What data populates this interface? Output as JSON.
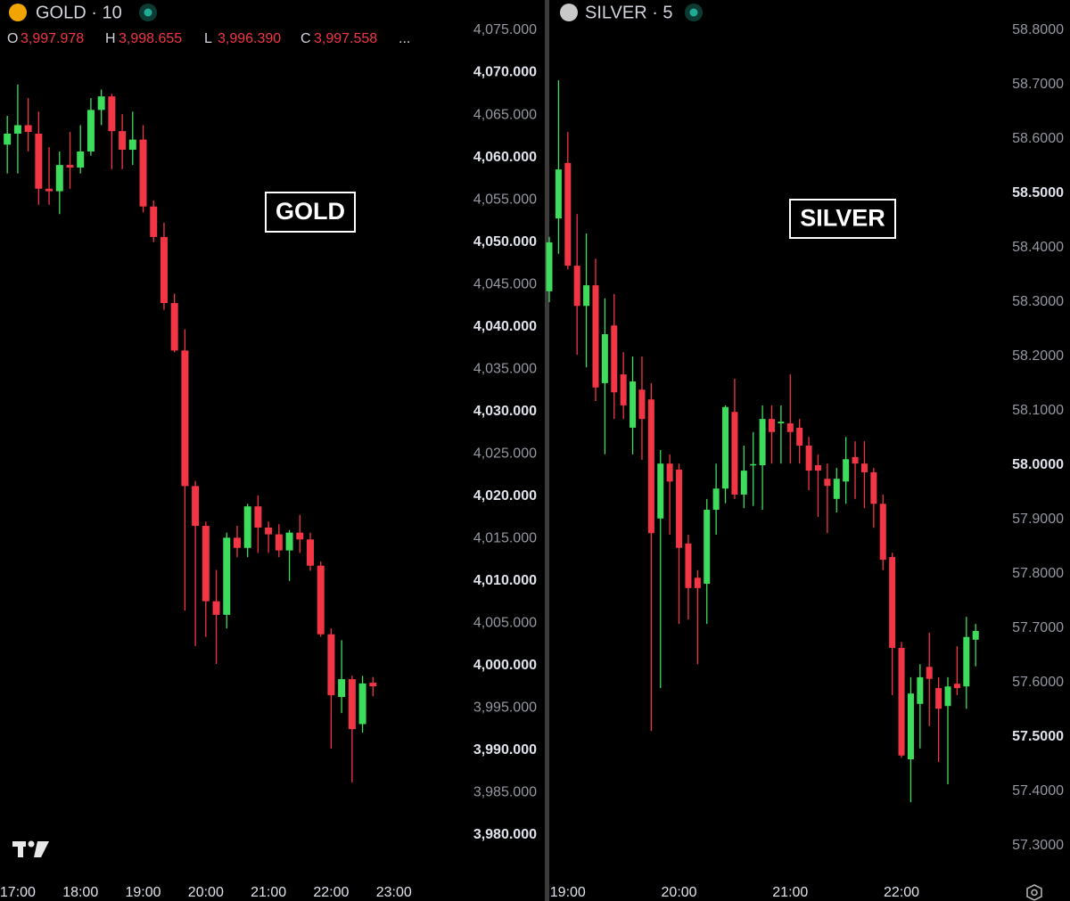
{
  "chart_data": [
    {
      "type": "candlestick",
      "title": "GOLD · 10",
      "annotation": "GOLD",
      "ohlc_legend": {
        "keys": [
          "O",
          "H",
          "L",
          "C"
        ],
        "values": [
          3997.978,
          3998.655,
          3996.39,
          3997.558
        ],
        "value_labels": [
          "3,997.978",
          "3,998.655",
          "3,996.390",
          "3,997.558"
        ],
        "more": "..."
      },
      "up_color": "#3ddc5c",
      "down_color": "#f23645",
      "x": [
        "16:50",
        "17:00",
        "17:10",
        "17:20",
        "17:30",
        "17:40",
        "17:50",
        "18:00",
        "18:10",
        "18:20",
        "18:30",
        "18:40",
        "18:50",
        "19:00",
        "19:10",
        "19:20",
        "19:30",
        "19:40",
        "19:50",
        "20:00",
        "20:10",
        "20:20",
        "20:30",
        "20:40",
        "20:50",
        "21:00",
        "21:10",
        "21:20",
        "21:30",
        "21:40",
        "21:50",
        "22:00",
        "22:10",
        "22:20",
        "22:30",
        "22:40"
      ],
      "open": [
        4061.5,
        4062.8,
        4063.8,
        4062.8,
        4056.3,
        4056.0,
        4059.1,
        4058.8,
        4060.7,
        4065.6,
        4067.2,
        4063.1,
        4060.9,
        4062.1,
        4054.2,
        4050.6,
        4042.8,
        4037.2,
        4021.2,
        4016.5,
        4007.6,
        4006.0,
        4015.1,
        4013.9,
        4018.8,
        4016.3,
        4015.5,
        4013.6,
        4015.7,
        4014.9,
        4011.8,
        4003.7,
        3996.3,
        3998.4,
        3993.1,
        3997.978
      ],
      "high": [
        4064.9,
        4068.6,
        4067.0,
        4065.4,
        4061.2,
        4060.7,
        4063.0,
        4063.8,
        4067.0,
        4068.0,
        4067.5,
        4065.1,
        4065.4,
        4063.8,
        4054.9,
        4052.3,
        4043.9,
        4039.7,
        4021.8,
        4017.0,
        4011.3,
        4015.7,
        4016.5,
        4019.1,
        4020.1,
        4017.0,
        4016.7,
        4016.0,
        4017.8,
        4015.7,
        4012.3,
        4004.4,
        4003.0,
        3998.8,
        3998.8,
        3998.655
      ],
      "low": [
        4058.1,
        4058.1,
        4060.7,
        4054.4,
        4054.4,
        4053.3,
        4056.3,
        4058.1,
        4060.2,
        4063.8,
        4058.6,
        4058.6,
        4059.1,
        4053.5,
        4050.0,
        4042.0,
        4037.0,
        4006.5,
        4002.3,
        4003.4,
        4000.2,
        4004.4,
        4012.8,
        4012.8,
        4013.3,
        4013.3,
        4012.8,
        4010.0,
        4013.3,
        4011.2,
        4003.4,
        3990.2,
        3994.4,
        3986.2,
        3992.1,
        3996.39
      ],
      "close": [
        4062.8,
        4063.8,
        4063.0,
        4056.3,
        4056.0,
        4059.1,
        4058.8,
        4060.7,
        4065.6,
        4067.2,
        4063.1,
        4060.9,
        4062.1,
        4054.2,
        4050.6,
        4042.8,
        4037.2,
        4021.2,
        4016.5,
        4007.6,
        4006.0,
        4015.1,
        4013.9,
        4018.8,
        4016.3,
        4015.5,
        4013.6,
        4015.7,
        4014.9,
        4011.8,
        4003.7,
        3996.5,
        3998.4,
        3992.5,
        3997.9,
        3997.558
      ],
      "xlim": [
        "16:43",
        "23:54"
      ],
      "xticks": [
        "17:00",
        "18:00",
        "19:00",
        "20:00",
        "21:00",
        "22:00",
        "23:00"
      ],
      "ylim": [
        3980,
        4075
      ],
      "yticks": [
        {
          "value": 4075,
          "label": "4,075.000"
        },
        {
          "value": 4070,
          "label": "4,070.000"
        },
        {
          "value": 4065,
          "label": "4,065.000"
        },
        {
          "value": 4060,
          "label": "4,060.000"
        },
        {
          "value": 4055,
          "label": "4,055.000"
        },
        {
          "value": 4050,
          "label": "4,050.000"
        },
        {
          "value": 4045,
          "label": "4,045.000"
        },
        {
          "value": 4040,
          "label": "4,040.000"
        },
        {
          "value": 4035,
          "label": "4,035.000"
        },
        {
          "value": 4030,
          "label": "4,030.000"
        },
        {
          "value": 4025,
          "label": "4,025.000"
        },
        {
          "value": 4020,
          "label": "4,020.000"
        },
        {
          "value": 4015,
          "label": "4,015.000"
        },
        {
          "value": 4010,
          "label": "4,010.000"
        },
        {
          "value": 4005,
          "label": "4,005.000"
        },
        {
          "value": 4000,
          "label": "4,000.000"
        },
        {
          "value": 3995,
          "label": "3,995.000"
        },
        {
          "value": 3990,
          "label": "3,990.000"
        },
        {
          "value": 3985,
          "label": "3,985.000"
        },
        {
          "value": 3980,
          "label": "3,980.000"
        }
      ]
    },
    {
      "type": "candlestick",
      "title": "SILVER · 5",
      "annotation": "SILVER",
      "up_color": "#3ddc5c",
      "down_color": "#f23645",
      "x": [
        "18:50",
        "18:55",
        "19:00",
        "19:05",
        "19:10",
        "19:15",
        "19:20",
        "19:25",
        "19:30",
        "19:35",
        "19:40",
        "19:45",
        "19:50",
        "19:55",
        "20:00",
        "20:05",
        "20:10",
        "20:15",
        "20:20",
        "20:25",
        "20:30",
        "20:35",
        "20:40",
        "20:45",
        "20:50",
        "20:55",
        "21:00",
        "21:05",
        "21:10",
        "21:15",
        "21:20",
        "21:25",
        "21:30",
        "21:35",
        "21:40",
        "21:45",
        "21:50",
        "21:55",
        "22:00",
        "22:05",
        "22:10",
        "22:15",
        "22:20",
        "22:25",
        "22:30",
        "22:35",
        "22:40"
      ],
      "open": [
        58.32,
        58.454,
        58.556,
        58.367,
        58.293,
        58.331,
        58.151,
        58.257,
        58.167,
        58.069,
        58.139,
        58.121,
        57.902,
        58.003,
        57.992,
        57.856,
        57.793,
        57.782,
        57.918,
        57.957,
        58.098,
        57.946,
        58.0,
        58.0,
        58.085,
        58.077,
        58.077,
        58.069,
        58.036,
        58.0,
        57.975,
        57.938,
        57.97,
        58.015,
        58.003,
        57.987,
        57.929,
        57.831,
        57.664,
        57.459,
        57.561,
        57.629,
        57.59,
        57.557,
        57.598,
        57.593,
        57.679
      ],
      "high": [
        58.42,
        58.708,
        58.613,
        58.462,
        58.426,
        58.38,
        58.307,
        58.315,
        58.208,
        58.2,
        58.2,
        58.151,
        58.028,
        58.02,
        58.003,
        57.872,
        57.807,
        57.938,
        58.003,
        58.11,
        58.159,
        58.036,
        58.061,
        58.11,
        58.11,
        58.11,
        58.167,
        58.085,
        58.052,
        58.02,
        58.003,
        57.995,
        58.052,
        58.044,
        58.044,
        57.995,
        57.946,
        57.839,
        57.675,
        57.61,
        57.634,
        57.692,
        57.61,
        57.61,
        57.667,
        57.721,
        57.708
      ],
      "low": [
        58.3,
        58.389,
        58.36,
        58.203,
        58.18,
        58.118,
        58.02,
        58.085,
        58.085,
        58.02,
        58.01,
        57.511,
        57.59,
        57.872,
        57.708,
        57.716,
        57.634,
        57.708,
        57.872,
        57.93,
        57.938,
        57.921,
        57.925,
        57.918,
        58.003,
        58.003,
        58.003,
        58.003,
        57.954,
        57.905,
        57.875,
        57.913,
        57.929,
        57.938,
        57.921,
        57.885,
        57.807,
        57.577,
        57.462,
        57.38,
        57.479,
        57.52,
        57.454,
        57.413,
        57.577,
        57.552,
        57.63
      ],
      "close": [
        58.41,
        58.544,
        58.367,
        58.293,
        58.331,
        58.143,
        58.241,
        58.134,
        58.11,
        58.154,
        58.085,
        57.875,
        58.003,
        57.97,
        57.848,
        57.774,
        57.774,
        57.918,
        57.957,
        58.107,
        57.946,
        57.99,
        58.002,
        58.085,
        58.061,
        58.08,
        58.061,
        58.036,
        57.99,
        57.99,
        57.962,
        57.975,
        58.011,
        58.003,
        57.987,
        57.929,
        57.826,
        57.664,
        57.466,
        57.58,
        57.61,
        57.607,
        57.552,
        57.593,
        57.59,
        57.684,
        57.695
      ],
      "xlim": [
        "18:50",
        "22:50"
      ],
      "xticks": [
        "19:00",
        "20:00",
        "21:00",
        "22:00"
      ],
      "ylim": [
        57.3,
        58.8
      ],
      "yticks": [
        {
          "value": 58.8,
          "label": "58.8000"
        },
        {
          "value": 58.7,
          "label": "58.7000"
        },
        {
          "value": 58.6,
          "label": "58.6000"
        },
        {
          "value": 58.5,
          "label": "58.5000"
        },
        {
          "value": 58.4,
          "label": "58.4000"
        },
        {
          "value": 58.3,
          "label": "58.3000"
        },
        {
          "value": 58.2,
          "label": "58.2000"
        },
        {
          "value": 58.1,
          "label": "58.1000"
        },
        {
          "value": 58.0,
          "label": "58.0000"
        },
        {
          "value": 57.9,
          "label": "57.9000"
        },
        {
          "value": 57.8,
          "label": "57.8000"
        },
        {
          "value": 57.7,
          "label": "57.7000"
        },
        {
          "value": 57.6,
          "label": "57.6000"
        },
        {
          "value": 57.5,
          "label": "57.5000"
        },
        {
          "value": 57.4,
          "label": "57.4000"
        },
        {
          "value": 57.3,
          "label": "57.3000"
        }
      ]
    }
  ]
}
